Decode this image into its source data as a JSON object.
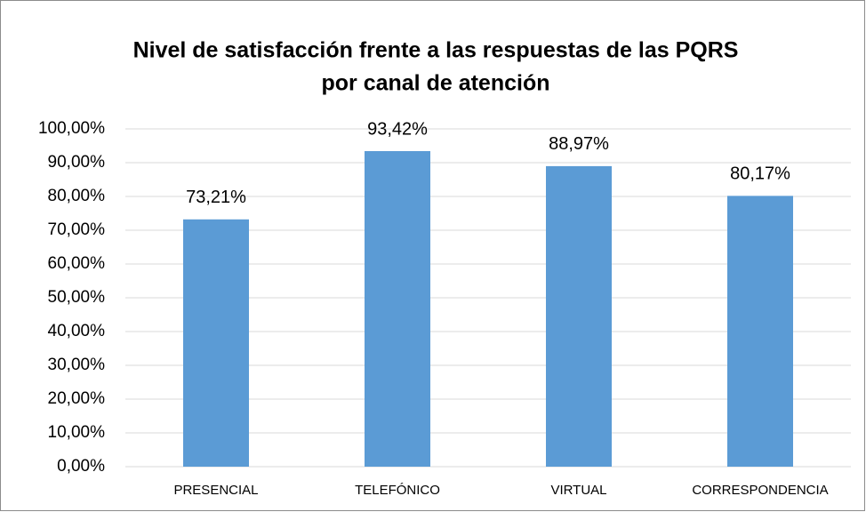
{
  "chart_data": {
    "type": "bar",
    "title": [
      "Nivel de satisfacción frente a las respuestas de las PQRS",
      "por canal de atención"
    ],
    "categories": [
      "PRESENCIAL",
      "TELEFÓNICO",
      "VIRTUAL",
      "CORRESPONDENCIA"
    ],
    "values": [
      73.21,
      93.42,
      88.97,
      80.17
    ],
    "value_labels": [
      "73,21%",
      "93,42%",
      "88,97%",
      "80,17%"
    ],
    "color": "#5b9bd5",
    "ylim": [
      0,
      100
    ],
    "yticks": [
      {
        "value": 0,
        "label": "0,00%"
      },
      {
        "value": 10,
        "label": "10,00%"
      },
      {
        "value": 20,
        "label": "20,00%"
      },
      {
        "value": 30,
        "label": "30,00%"
      },
      {
        "value": 40,
        "label": "40,00%"
      },
      {
        "value": 50,
        "label": "50,00%"
      },
      {
        "value": 60,
        "label": "60,00%"
      },
      {
        "value": 70,
        "label": "70,00%"
      },
      {
        "value": 80,
        "label": "80,00%"
      },
      {
        "value": 90,
        "label": "90,00%"
      },
      {
        "value": 100,
        "label": "100,00%"
      }
    ],
    "grid": true
  }
}
